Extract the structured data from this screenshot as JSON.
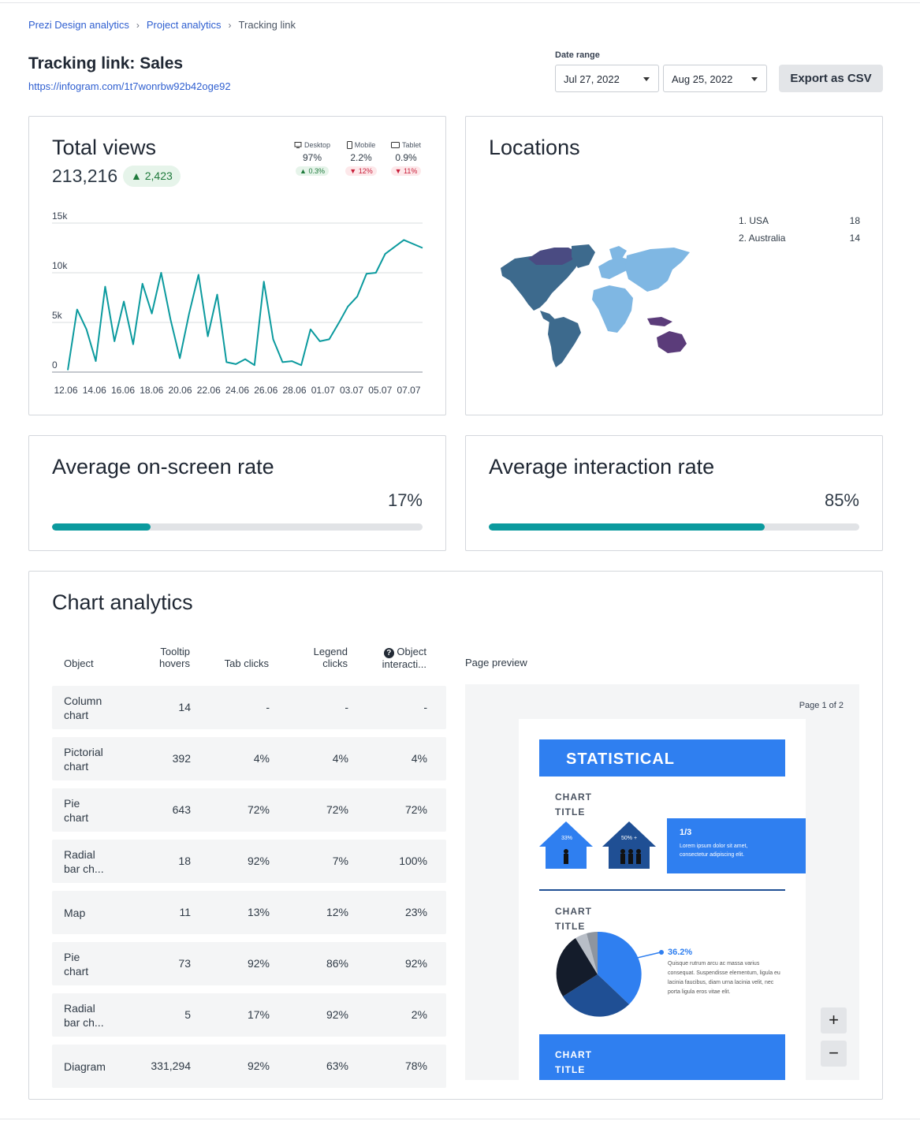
{
  "breadcrumb": {
    "items": [
      "Prezi Design analytics",
      "Project analytics"
    ],
    "current": "Tracking link"
  },
  "header": {
    "title": "Tracking link: Sales",
    "url": "https://infogram.com/1t7wonrbw92b42oge92",
    "date_range_label": "Date range",
    "date_from": "Jul 27, 2022",
    "date_to": "Aug 25, 2022",
    "export_label": "Export as CSV"
  },
  "total_views": {
    "title": "Total views",
    "total": "213,216",
    "delta": "2,423",
    "devices": [
      {
        "label": "Desktop",
        "icon": "desktop-icon",
        "value": "97%",
        "change": "0.3%",
        "direction": "up"
      },
      {
        "label": "Mobile",
        "icon": "mobile-icon",
        "value": "2.2%",
        "change": "12%",
        "direction": "down"
      },
      {
        "label": "Tablet",
        "icon": "tablet-icon",
        "value": "0.9%",
        "change": "11%",
        "direction": "down"
      }
    ]
  },
  "chart_data": {
    "type": "line",
    "title": "",
    "xlabel": "",
    "ylabel": "",
    "ylim": [
      0,
      15000
    ],
    "yticks": [
      "0",
      "5k",
      "10k",
      "15k"
    ],
    "xticks": [
      "12.06",
      "14.06",
      "16.06",
      "18.06",
      "20.06",
      "22.06",
      "24.06",
      "26.06",
      "28.06",
      "01.07",
      "03.07",
      "05.07",
      "07.07"
    ],
    "values": [
      200,
      6300,
      4300,
      1100,
      8600,
      3100,
      7100,
      2800,
      8900,
      5900,
      10000,
      5300,
      1400,
      5900,
      9800,
      3600,
      7800,
      1000,
      800,
      1300,
      700,
      9100,
      3300,
      1000,
      1100,
      700,
      4300,
      3100,
      3300,
      4900,
      6600,
      7600,
      9900,
      10000,
      11900,
      12600,
      13300,
      12900,
      12500
    ],
    "color": "#0b9a9e",
    "grid": true
  },
  "locations": {
    "title": "Locations",
    "items": [
      {
        "rank": "1. USA",
        "value": "18"
      },
      {
        "rank": "2. Australia",
        "value": "14"
      }
    ]
  },
  "onscreen": {
    "title": "Average on-screen rate",
    "value": "17%",
    "fraction": 0.265
  },
  "interaction": {
    "title": "Average interaction rate",
    "value": "85%",
    "fraction": 0.745
  },
  "chart_analytics": {
    "title": "Chart analytics",
    "columns": [
      "Object",
      "Tooltip hovers",
      "Tab clicks",
      "Legend clicks",
      "Object interacti..."
    ],
    "rows": [
      {
        "object": "Column chart",
        "tooltip": "14",
        "tab": "-",
        "legend": "-",
        "interaction": "-"
      },
      {
        "object": "Pictorial chart",
        "tooltip": "392",
        "tab": "4%",
        "legend": "4%",
        "interaction": "4%"
      },
      {
        "object": "Pie chart",
        "tooltip": "643",
        "tab": "72%",
        "legend": "72%",
        "interaction": "72%"
      },
      {
        "object": "Radial bar ch...",
        "tooltip": "18",
        "tab": "92%",
        "legend": "7%",
        "interaction": "100%"
      },
      {
        "object": "Map",
        "tooltip": "11",
        "tab": "13%",
        "legend": "12%",
        "interaction": "23%"
      },
      {
        "object": "Pie chart",
        "tooltip": "73",
        "tab": "92%",
        "legend": "86%",
        "interaction": "92%"
      },
      {
        "object": "Radial bar ch...",
        "tooltip": "5",
        "tab": "17%",
        "legend": "92%",
        "interaction": "2%"
      },
      {
        "object": "Diagram",
        "tooltip": "331,294",
        "tab": "92%",
        "legend": "63%",
        "interaction": "78%"
      }
    ],
    "preview_label": "Page preview",
    "page_label": "Page 1 of 2",
    "zoom_in": "+",
    "zoom_out": "−",
    "preview": {
      "banner": "STATISTICAL",
      "chart_title_1": "CHART",
      "chart_title_2": "TITLE",
      "house_small": "33%",
      "house_big": "50% +",
      "fraction": "1/3",
      "fraction_text": "Lorem ipsum dolor sit amet, consectetur adipiscing elit.",
      "pie_pct": "36.2%",
      "pie_text": "Quisque rutrum arcu ac massa varius consequat. Suspendisse elementum, ligula eu lacinia faucibus, diam urna lacinia velit, nec porta ligula eros vitae elit."
    }
  }
}
